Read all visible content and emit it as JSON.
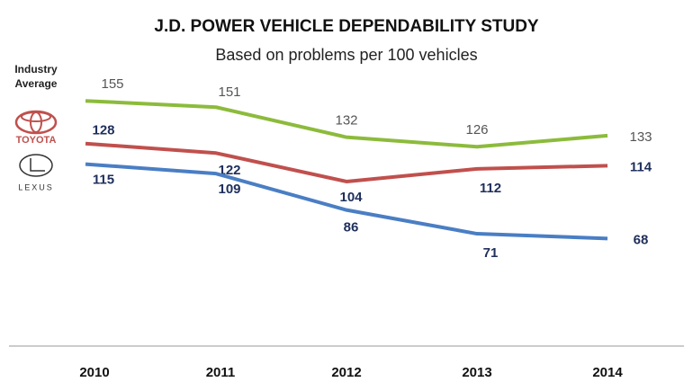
{
  "chart_data": {
    "type": "line",
    "title": "J.D. POWER VEHICLE DEPENDABILITY STUDY",
    "subtitle": "Based on problems per 100 vehicles",
    "categories": [
      "2010",
      "2011",
      "2012",
      "2013",
      "2014"
    ],
    "ylim": [
      0,
      200
    ],
    "series": [
      {
        "name": "Industry Average",
        "color": "#8cbb3c",
        "values": [
          155,
          151,
          132,
          126,
          133
        ]
      },
      {
        "name": "TOYOTA",
        "color": "#c0504d",
        "values": [
          128,
          122,
          104,
          112,
          114
        ]
      },
      {
        "name": "LEXUS",
        "color": "#4a7ec4",
        "values": [
          115,
          109,
          86,
          71,
          68
        ]
      }
    ]
  }
}
